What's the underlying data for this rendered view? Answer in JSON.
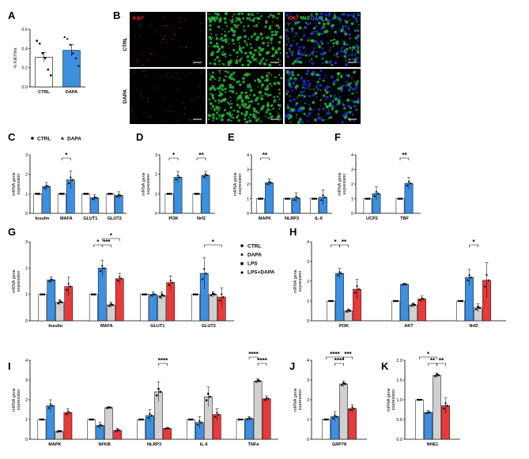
{
  "colors": {
    "ctrl": "#ffffff",
    "dapa": "#3d8fe0",
    "lps": "#d0d0d0",
    "lpsdapa": "#e83a3a",
    "ki67": "#ff2a2a",
    "ins": "#27d23c",
    "dapi": "#3a6dff",
    "green_tissue": "#27b33c",
    "blue_tissue": "#1a33c8"
  },
  "microscopy": {
    "panel": "B",
    "channels": [
      "Ki67",
      "INS",
      "DAPI"
    ],
    "rows": [
      "CTRL",
      "DAPA"
    ]
  },
  "legend_cd": {
    "ctrl": "CTRL",
    "dapa": "DAPA"
  },
  "legend_4": [
    "CTRL",
    "DAPA",
    "LPS",
    "LPS+DAPA"
  ],
  "chart_data": [
    {
      "panel": "A",
      "type": "bar",
      "ylabel": "% Ki67/ins",
      "ylim": [
        0,
        0.6
      ],
      "yticks": [
        "0.0",
        "0.2",
        "0.4",
        "0.6"
      ],
      "categories": [
        "CTRL",
        "DAPA"
      ],
      "colors": [
        "ctrl",
        "dapa"
      ],
      "values": [
        0.31,
        0.38
      ],
      "errors": [
        0.05,
        0.06
      ],
      "points": [
        [
          0.48,
          0.45,
          0.35,
          0.3,
          0.18,
          0.12
        ],
        [
          0.52,
          0.5,
          0.44,
          0.35,
          0.3,
          0.22
        ]
      ]
    },
    {
      "panel": "C",
      "type": "bar",
      "ylabel": "mRNA gene expression",
      "ylim": [
        0,
        3
      ],
      "yticks": [
        "0",
        "1",
        "2",
        "3"
      ],
      "groups": [
        "Insulin",
        "MAFA",
        "GLUT1",
        "GLUT2"
      ],
      "series": [
        "CTRL",
        "DAPA"
      ],
      "values": [
        [
          1,
          1.38
        ],
        [
          1,
          1.72
        ],
        [
          1,
          0.8
        ],
        [
          1,
          0.92
        ]
      ],
      "errors": [
        [
          0,
          0.2
        ],
        [
          0,
          0.45
        ],
        [
          0,
          0.15
        ],
        [
          0,
          0.18
        ]
      ],
      "sig": [
        {
          "group": 1,
          "from": 0,
          "to": 1,
          "label": "*"
        }
      ]
    },
    {
      "panel": "D",
      "type": "bar",
      "ylabel": "mRNA gene expression",
      "ylim": [
        0,
        3
      ],
      "yticks": [
        "0",
        "1",
        "2",
        "3"
      ],
      "groups": [
        "PI3K",
        "Nrf2"
      ],
      "series": [
        "CTRL",
        "DAPA"
      ],
      "values": [
        [
          1,
          1.85
        ],
        [
          1,
          1.95
        ]
      ],
      "errors": [
        [
          0,
          0.3
        ],
        [
          0,
          0.2
        ]
      ],
      "sig": [
        {
          "group": 0,
          "from": 0,
          "to": 1,
          "label": "*"
        },
        {
          "group": 1,
          "from": 0,
          "to": 1,
          "label": "**"
        }
      ]
    },
    {
      "panel": "E",
      "type": "bar",
      "ylabel": "mRNA gene expression",
      "ylim": [
        0,
        4
      ],
      "yticks": [
        "0",
        "1",
        "2",
        "3",
        "4"
      ],
      "groups": [
        "MAPK",
        "NLRP3",
        "IL-6"
      ],
      "series": [
        "CTRL",
        "DAPA"
      ],
      "values": [
        [
          1,
          2.1
        ],
        [
          1,
          1.05
        ],
        [
          1,
          1.1
        ]
      ],
      "errors": [
        [
          0,
          0.25
        ],
        [
          0,
          0.35
        ],
        [
          0,
          0.5
        ]
      ],
      "sig": [
        {
          "group": 0,
          "from": 0,
          "to": 1,
          "label": "**"
        }
      ]
    },
    {
      "panel": "F",
      "type": "bar",
      "ylabel": "mRNA gene expression",
      "ylim": [
        0,
        4
      ],
      "yticks": [
        "0",
        "1",
        "2",
        "3",
        "4"
      ],
      "groups": [
        "UCP2",
        "TBF"
      ],
      "series": [
        "CTRL",
        "DAPA"
      ],
      "values": [
        [
          1,
          1.35
        ],
        [
          1,
          2.05
        ]
      ],
      "errors": [
        [
          0,
          0.45
        ],
        [
          0,
          0.4
        ]
      ],
      "sig": [
        {
          "group": 1,
          "from": 0,
          "to": 1,
          "label": "**"
        }
      ]
    },
    {
      "panel": "G",
      "type": "bar",
      "ylabel": "mRNA gene expression",
      "ylim": [
        0,
        3
      ],
      "yticks": [
        "0",
        "1",
        "2",
        "3"
      ],
      "groups": [
        "Insulin",
        "MAFA",
        "GLUT1",
        "GLUT2"
      ],
      "series": [
        "CTRL",
        "DAPA",
        "LPS",
        "LPS+DAPA"
      ],
      "values": [
        [
          1,
          1.55,
          0.7,
          1.3
        ],
        [
          1,
          2.0,
          0.6,
          1.6
        ],
        [
          1,
          1.0,
          0.95,
          1.45
        ],
        [
          1,
          1.8,
          1.0,
          0.9
        ]
      ],
      "errors": [
        [
          0,
          0.12,
          0.1,
          0.35
        ],
        [
          0,
          0.3,
          0.1,
          0.2
        ],
        [
          0,
          0.1,
          0.15,
          0.25
        ],
        [
          0,
          0.6,
          0.1,
          0.35
        ]
      ],
      "sig": [
        {
          "group": 1,
          "from": 0,
          "to": 1,
          "label": "*",
          "level": 0
        },
        {
          "group": 1,
          "from": 1,
          "to": 2,
          "label": "***",
          "level": 0
        },
        {
          "group": 1,
          "from": 1,
          "to": 3,
          "label": "*",
          "level": 1
        },
        {
          "group": 3,
          "from": 1,
          "to": 3,
          "label": "*",
          "level": 0
        }
      ]
    },
    {
      "panel": "H",
      "type": "bar",
      "ylabel": "mRNA gene expression",
      "ylim": [
        0,
        4
      ],
      "yticks": [
        "0",
        "1",
        "2",
        "3",
        "4"
      ],
      "groups": [
        "PI3K",
        "AKT",
        "Nrf2"
      ],
      "series": [
        "CTRL",
        "DAPA",
        "LPS",
        "LPS+DAPA"
      ],
      "values": [
        [
          1,
          2.4,
          0.5,
          1.6
        ],
        [
          1,
          1.85,
          0.8,
          1.1
        ],
        [
          1,
          2.2,
          0.65,
          2.05
        ]
      ],
      "errors": [
        [
          0,
          0.25,
          0.1,
          0.5
        ],
        [
          0,
          0.05,
          0.1,
          0.15
        ],
        [
          0,
          0.4,
          0.2,
          0.9
        ]
      ],
      "sig": [
        {
          "group": 0,
          "from": 0,
          "to": 1,
          "label": "*",
          "level": 0
        },
        {
          "group": 0,
          "from": 1,
          "to": 2,
          "label": "**",
          "level": 0
        },
        {
          "group": 2,
          "from": 1,
          "to": 2,
          "label": "*",
          "level": 0
        }
      ]
    },
    {
      "panel": "I",
      "type": "bar",
      "ylabel": "mRNA gene expression",
      "ylim": [
        0,
        4
      ],
      "yticks": [
        "0",
        "1",
        "2",
        "3",
        "4"
      ],
      "groups": [
        "MAPK",
        "NFKB",
        "NLRP3",
        "IL-6",
        "TNFα"
      ],
      "series": [
        "CTRL",
        "DAPA",
        "LPS",
        "LPS+DAPA"
      ],
      "values": [
        [
          1,
          1.7,
          0.4,
          1.35
        ],
        [
          1,
          0.7,
          1.6,
          0.45
        ],
        [
          1,
          1.2,
          2.4,
          0.55
        ],
        [
          1,
          0.85,
          2.15,
          1.25
        ],
        [
          1,
          1.05,
          2.95,
          2.05
        ]
      ],
      "errors": [
        [
          0,
          0.3,
          0.05,
          0.2
        ],
        [
          0,
          0.15,
          0.05,
          0.1
        ],
        [
          0,
          0.3,
          0.5,
          0.05
        ],
        [
          0,
          0.3,
          0.5,
          0.3
        ],
        [
          0,
          0.1,
          0.1,
          0.15
        ]
      ],
      "sig": [
        {
          "group": 2,
          "from": 2,
          "to": 3,
          "label": "****",
          "level": 0
        },
        {
          "group": 4,
          "from": 2,
          "to": 3,
          "label": "****",
          "level": 0
        },
        {
          "group": 4,
          "from": 1,
          "to": 2,
          "label": "****",
          "level": 1
        }
      ]
    },
    {
      "panel": "J",
      "type": "bar",
      "ylabel": "mRNA gene expression",
      "ylim": [
        0,
        4
      ],
      "yticks": [
        "0",
        "1",
        "2",
        "3",
        "4"
      ],
      "groups": [
        "GRP78"
      ],
      "series": [
        "CTRL",
        "DAPA",
        "LPS",
        "LPS+DAPA"
      ],
      "values": [
        [
          1,
          1.15,
          2.8,
          1.55
        ]
      ],
      "errors": [
        [
          0,
          0.25,
          0.15,
          0.2
        ]
      ],
      "sig": [
        {
          "group": 0,
          "from": 1,
          "to": 2,
          "label": "****",
          "level": 0
        },
        {
          "group": 0,
          "from": 0,
          "to": 2,
          "label": "****",
          "level": 1
        },
        {
          "group": 0,
          "from": 2,
          "to": 3,
          "label": "***",
          "level": 1
        }
      ]
    },
    {
      "panel": "K",
      "type": "bar",
      "ylabel": "mRNA gene expression",
      "ylim": [
        0,
        2.0
      ],
      "yticks": [
        "0.0",
        "0.5",
        "1.0",
        "1.5",
        "2.0"
      ],
      "groups": [
        "NHE1"
      ],
      "series": [
        "CTRL",
        "DAPA",
        "LPS",
        "LPS+DAPA"
      ],
      "values": [
        [
          1,
          0.68,
          1.62,
          0.85
        ]
      ],
      "errors": [
        [
          0,
          0.05,
          0.06,
          0.2
        ]
      ],
      "sig": [
        {
          "group": 0,
          "from": 1,
          "to": 2,
          "label": "**",
          "level": 0
        },
        {
          "group": 0,
          "from": 2,
          "to": 3,
          "label": "**",
          "level": 0
        },
        {
          "group": 0,
          "from": 0,
          "to": 2,
          "label": "*",
          "level": 1
        }
      ]
    }
  ]
}
